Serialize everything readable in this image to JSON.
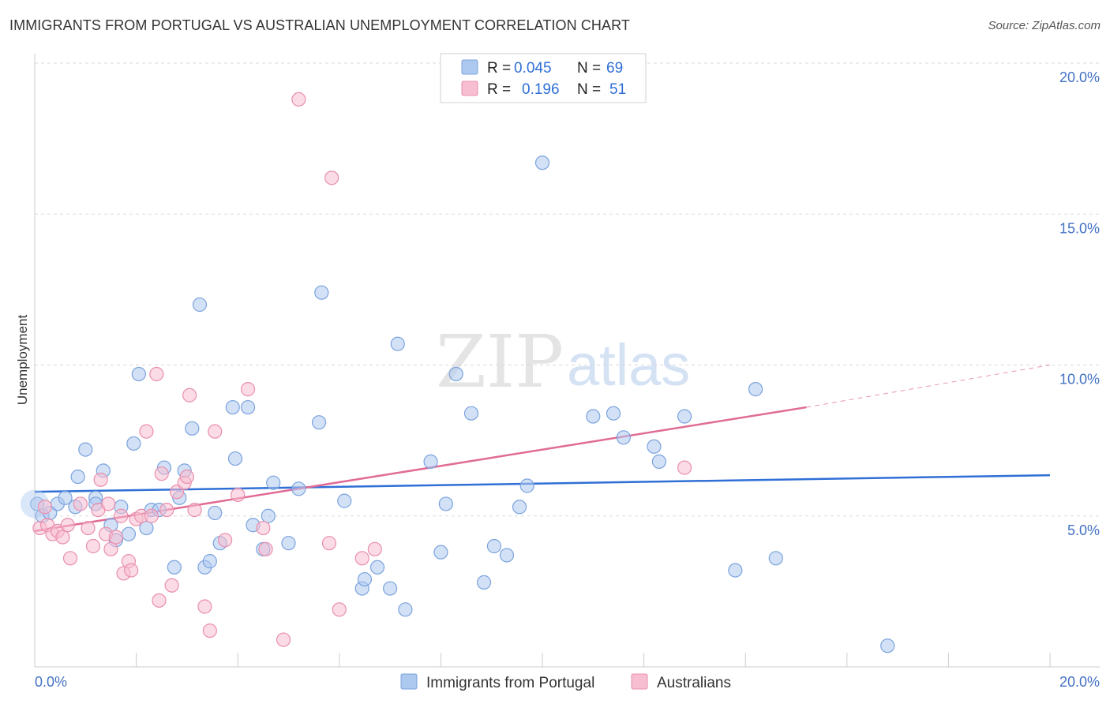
{
  "header": {
    "title": "IMMIGRANTS FROM PORTUGAL VS AUSTRALIAN UNEMPLOYMENT CORRELATION CHART",
    "source": "Source: ZipAtlas.com"
  },
  "watermark": {
    "zip": "ZIP",
    "atlas": "atlas"
  },
  "colors": {
    "blue_fill": "#aec9f0",
    "blue_stroke": "#7aa3dd",
    "blue_line": "#2f6fd6",
    "pink_fill": "#f7bdd0",
    "pink_stroke": "#e98fae",
    "pink_line": "#e06b96",
    "axis_label": "#4472c4",
    "grid": "#d9d9d9"
  },
  "legend": {
    "rows": [
      {
        "r_label": "R =",
        "r_value": "0.045",
        "n_label": "N =",
        "n_value": "69"
      },
      {
        "r_label": "R =",
        "r_value": "0.196",
        "n_label": "N =",
        "n_value": "51"
      }
    ]
  },
  "chart_data": {
    "type": "scatter",
    "title": "IMMIGRANTS FROM PORTUGAL VS AUSTRALIAN UNEMPLOYMENT CORRELATION CHART",
    "xlabel": "",
    "ylabel": "Unemployment",
    "xlim": [
      0,
      20
    ],
    "ylim": [
      0,
      20
    ],
    "x_tick_labels": [
      "0.0%",
      "20.0%"
    ],
    "y_tick_labels": [
      "5.0%",
      "10.0%",
      "15.0%",
      "20.0%"
    ],
    "y_ticks": [
      5,
      10,
      15,
      20
    ],
    "grid": "horizontal dashed",
    "legend_position": "top-center",
    "series": [
      {
        "name": "Immigrants from Portugal",
        "r": 0.045,
        "n": 69,
        "trend": {
          "x0": 0,
          "y0": 5.8,
          "x1": 20,
          "y1": 6.35
        },
        "points": [
          [
            0.05,
            5.4
          ],
          [
            0.15,
            5.0
          ],
          [
            0.3,
            5.1
          ],
          [
            0.45,
            5.4
          ],
          [
            0.6,
            5.6
          ],
          [
            0.8,
            5.3
          ],
          [
            0.85,
            6.3
          ],
          [
            1.0,
            7.2
          ],
          [
            1.2,
            5.6
          ],
          [
            1.2,
            5.4
          ],
          [
            1.35,
            6.5
          ],
          [
            1.5,
            4.7
          ],
          [
            1.6,
            4.2
          ],
          [
            1.7,
            5.3
          ],
          [
            1.85,
            4.4
          ],
          [
            1.95,
            7.4
          ],
          [
            2.05,
            9.7
          ],
          [
            2.2,
            4.6
          ],
          [
            2.3,
            5.2
          ],
          [
            2.45,
            5.2
          ],
          [
            2.55,
            6.6
          ],
          [
            2.75,
            3.3
          ],
          [
            2.85,
            5.6
          ],
          [
            2.95,
            6.5
          ],
          [
            3.1,
            7.9
          ],
          [
            3.25,
            12.0
          ],
          [
            3.35,
            3.3
          ],
          [
            3.45,
            3.5
          ],
          [
            3.55,
            5.1
          ],
          [
            3.65,
            4.1
          ],
          [
            3.9,
            8.6
          ],
          [
            3.95,
            6.9
          ],
          [
            4.2,
            8.6
          ],
          [
            4.3,
            4.7
          ],
          [
            4.5,
            3.9
          ],
          [
            4.6,
            5.0
          ],
          [
            4.7,
            6.1
          ],
          [
            5.0,
            4.1
          ],
          [
            5.2,
            5.9
          ],
          [
            5.6,
            8.1
          ],
          [
            5.65,
            12.4
          ],
          [
            6.1,
            5.5
          ],
          [
            6.45,
            2.6
          ],
          [
            6.5,
            2.9
          ],
          [
            6.75,
            3.3
          ],
          [
            7.0,
            2.6
          ],
          [
            7.15,
            10.7
          ],
          [
            7.3,
            1.9
          ],
          [
            7.8,
            6.8
          ],
          [
            8.0,
            3.8
          ],
          [
            8.1,
            5.4
          ],
          [
            8.3,
            9.7
          ],
          [
            8.6,
            8.4
          ],
          [
            8.85,
            2.8
          ],
          [
            9.05,
            4.0
          ],
          [
            9.3,
            3.7
          ],
          [
            9.55,
            5.3
          ],
          [
            9.7,
            6.0
          ],
          [
            10.0,
            16.7
          ],
          [
            11.0,
            8.3
          ],
          [
            11.4,
            8.4
          ],
          [
            11.6,
            7.6
          ],
          [
            12.2,
            7.3
          ],
          [
            12.3,
            6.8
          ],
          [
            12.8,
            8.3
          ],
          [
            13.8,
            3.2
          ],
          [
            14.2,
            9.2
          ],
          [
            14.6,
            3.6
          ],
          [
            16.8,
            0.7
          ]
        ]
      },
      {
        "name": "Australians",
        "r": 0.196,
        "n": 51,
        "trend": {
          "x0": 0,
          "y0": 4.5,
          "x1": 15.2,
          "y1": 8.6,
          "dash_to_x": 20,
          "dash_to_y": 10.0
        },
        "points": [
          [
            0.1,
            4.6
          ],
          [
            0.25,
            4.7
          ],
          [
            0.35,
            4.4
          ],
          [
            0.45,
            4.5
          ],
          [
            0.55,
            4.3
          ],
          [
            0.65,
            4.7
          ],
          [
            0.7,
            3.6
          ],
          [
            0.9,
            5.4
          ],
          [
            1.05,
            4.6
          ],
          [
            1.15,
            4.0
          ],
          [
            1.25,
            5.2
          ],
          [
            1.3,
            6.2
          ],
          [
            1.4,
            4.4
          ],
          [
            1.45,
            5.4
          ],
          [
            1.5,
            3.9
          ],
          [
            1.6,
            4.3
          ],
          [
            1.7,
            5.0
          ],
          [
            1.75,
            3.1
          ],
          [
            1.85,
            3.5
          ],
          [
            1.9,
            3.2
          ],
          [
            2.0,
            4.9
          ],
          [
            2.1,
            5.0
          ],
          [
            2.2,
            7.8
          ],
          [
            2.3,
            5.0
          ],
          [
            2.4,
            9.7
          ],
          [
            2.45,
            2.2
          ],
          [
            2.5,
            6.4
          ],
          [
            2.6,
            5.2
          ],
          [
            2.7,
            2.7
          ],
          [
            2.8,
            5.8
          ],
          [
            2.95,
            6.1
          ],
          [
            3.0,
            6.3
          ],
          [
            3.05,
            9.0
          ],
          [
            3.15,
            5.2
          ],
          [
            3.35,
            2.0
          ],
          [
            3.45,
            1.2
          ],
          [
            3.55,
            7.8
          ],
          [
            3.75,
            4.2
          ],
          [
            4.0,
            5.7
          ],
          [
            4.2,
            9.2
          ],
          [
            4.5,
            4.6
          ],
          [
            4.55,
            3.9
          ],
          [
            4.9,
            0.9
          ],
          [
            5.2,
            18.8
          ],
          [
            5.8,
            4.1
          ],
          [
            5.85,
            16.2
          ],
          [
            6.0,
            1.9
          ],
          [
            6.45,
            3.6
          ],
          [
            6.7,
            3.9
          ],
          [
            12.8,
            6.6
          ],
          [
            0.2,
            5.3
          ]
        ]
      }
    ]
  }
}
